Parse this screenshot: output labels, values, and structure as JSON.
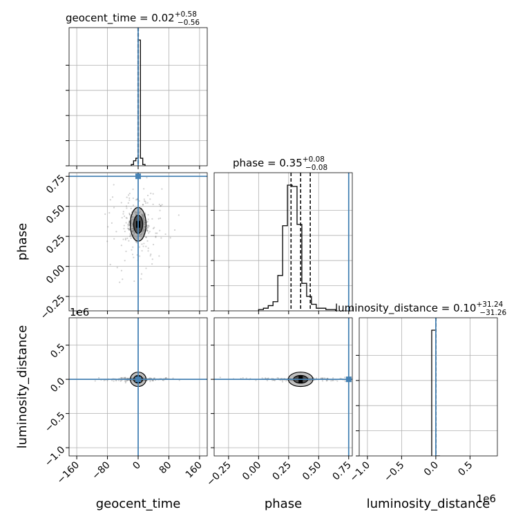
{
  "chart_data": {
    "type": "corner",
    "parameters": [
      "geocent_time",
      "phase",
      "luminosity_distance"
    ],
    "axis_labels": {
      "geocent_time": "geocent_time",
      "phase": "phase",
      "luminosity_distance": "luminosity_distance"
    },
    "ranges": {
      "geocent_time": [
        -180,
        180
      ],
      "phase": [
        -0.37,
        0.78
      ],
      "luminosity_distance": [
        -1120000,
        900000
      ]
    },
    "ticks": {
      "geocent_time": {
        "values": [
          -160,
          -80,
          0,
          80,
          160
        ],
        "labels": [
          "−160",
          "−80",
          "0",
          "80",
          "160"
        ]
      },
      "phase": {
        "values": [
          -0.25,
          0.0,
          0.25,
          0.5,
          0.75
        ],
        "labels": [
          "−0.25",
          "0.00",
          "0.25",
          "0.50",
          "0.75"
        ]
      },
      "luminosity_distance": {
        "values": [
          -1000000,
          -500000,
          0,
          500000
        ],
        "labels": [
          "−1.0",
          "−0.5",
          "0.0",
          "0.5"
        ],
        "offset_label": "1e6"
      }
    },
    "titles": {
      "geocent_time": {
        "name": "geocent_time",
        "median": "0.02",
        "plus": "+0.58",
        "minus": "−0.56"
      },
      "phase": {
        "name": "phase",
        "median": "0.35",
        "plus": "+0.08",
        "minus": "−0.08"
      },
      "luminosity_distance": {
        "name": "luminosity_distance",
        "median": "0.10",
        "plus": "+31.24",
        "minus": "−31.26"
      }
    },
    "truths": {
      "geocent_time": 0,
      "phase": 0.75,
      "luminosity_distance": 0
    },
    "quantiles": {
      "geocent_time": [
        -0.54,
        0.02,
        0.6
      ],
      "phase": [
        0.27,
        0.35,
        0.43
      ],
      "luminosity_distance": [
        -31.16,
        0.1,
        31.34
      ]
    },
    "histograms": {
      "geocent_time": {
        "bins": [
          -18,
          -12,
          -6,
          0,
          6,
          12,
          18
        ],
        "counts": [
          0.01,
          0.04,
          0.06,
          1.0,
          0.06,
          0.01
        ]
      },
      "phase": {
        "bins": [
          -0.0,
          0.04,
          0.08,
          0.12,
          0.16,
          0.2,
          0.24,
          0.28,
          0.32,
          0.36,
          0.4,
          0.44,
          0.48,
          0.52,
          0.56,
          0.6,
          0.64
        ],
        "counts": [
          0.01,
          0.02,
          0.04,
          0.07,
          0.27,
          0.65,
          0.96,
          0.95,
          0.66,
          0.21,
          0.11,
          0.05,
          0.02,
          0.02,
          0.01,
          0.01
        ]
      },
      "luminosity_distance": {
        "bins": [
          -60000,
          0,
          60000
        ],
        "counts": [
          1.0,
          0.0
        ]
      }
    },
    "grid": true
  }
}
